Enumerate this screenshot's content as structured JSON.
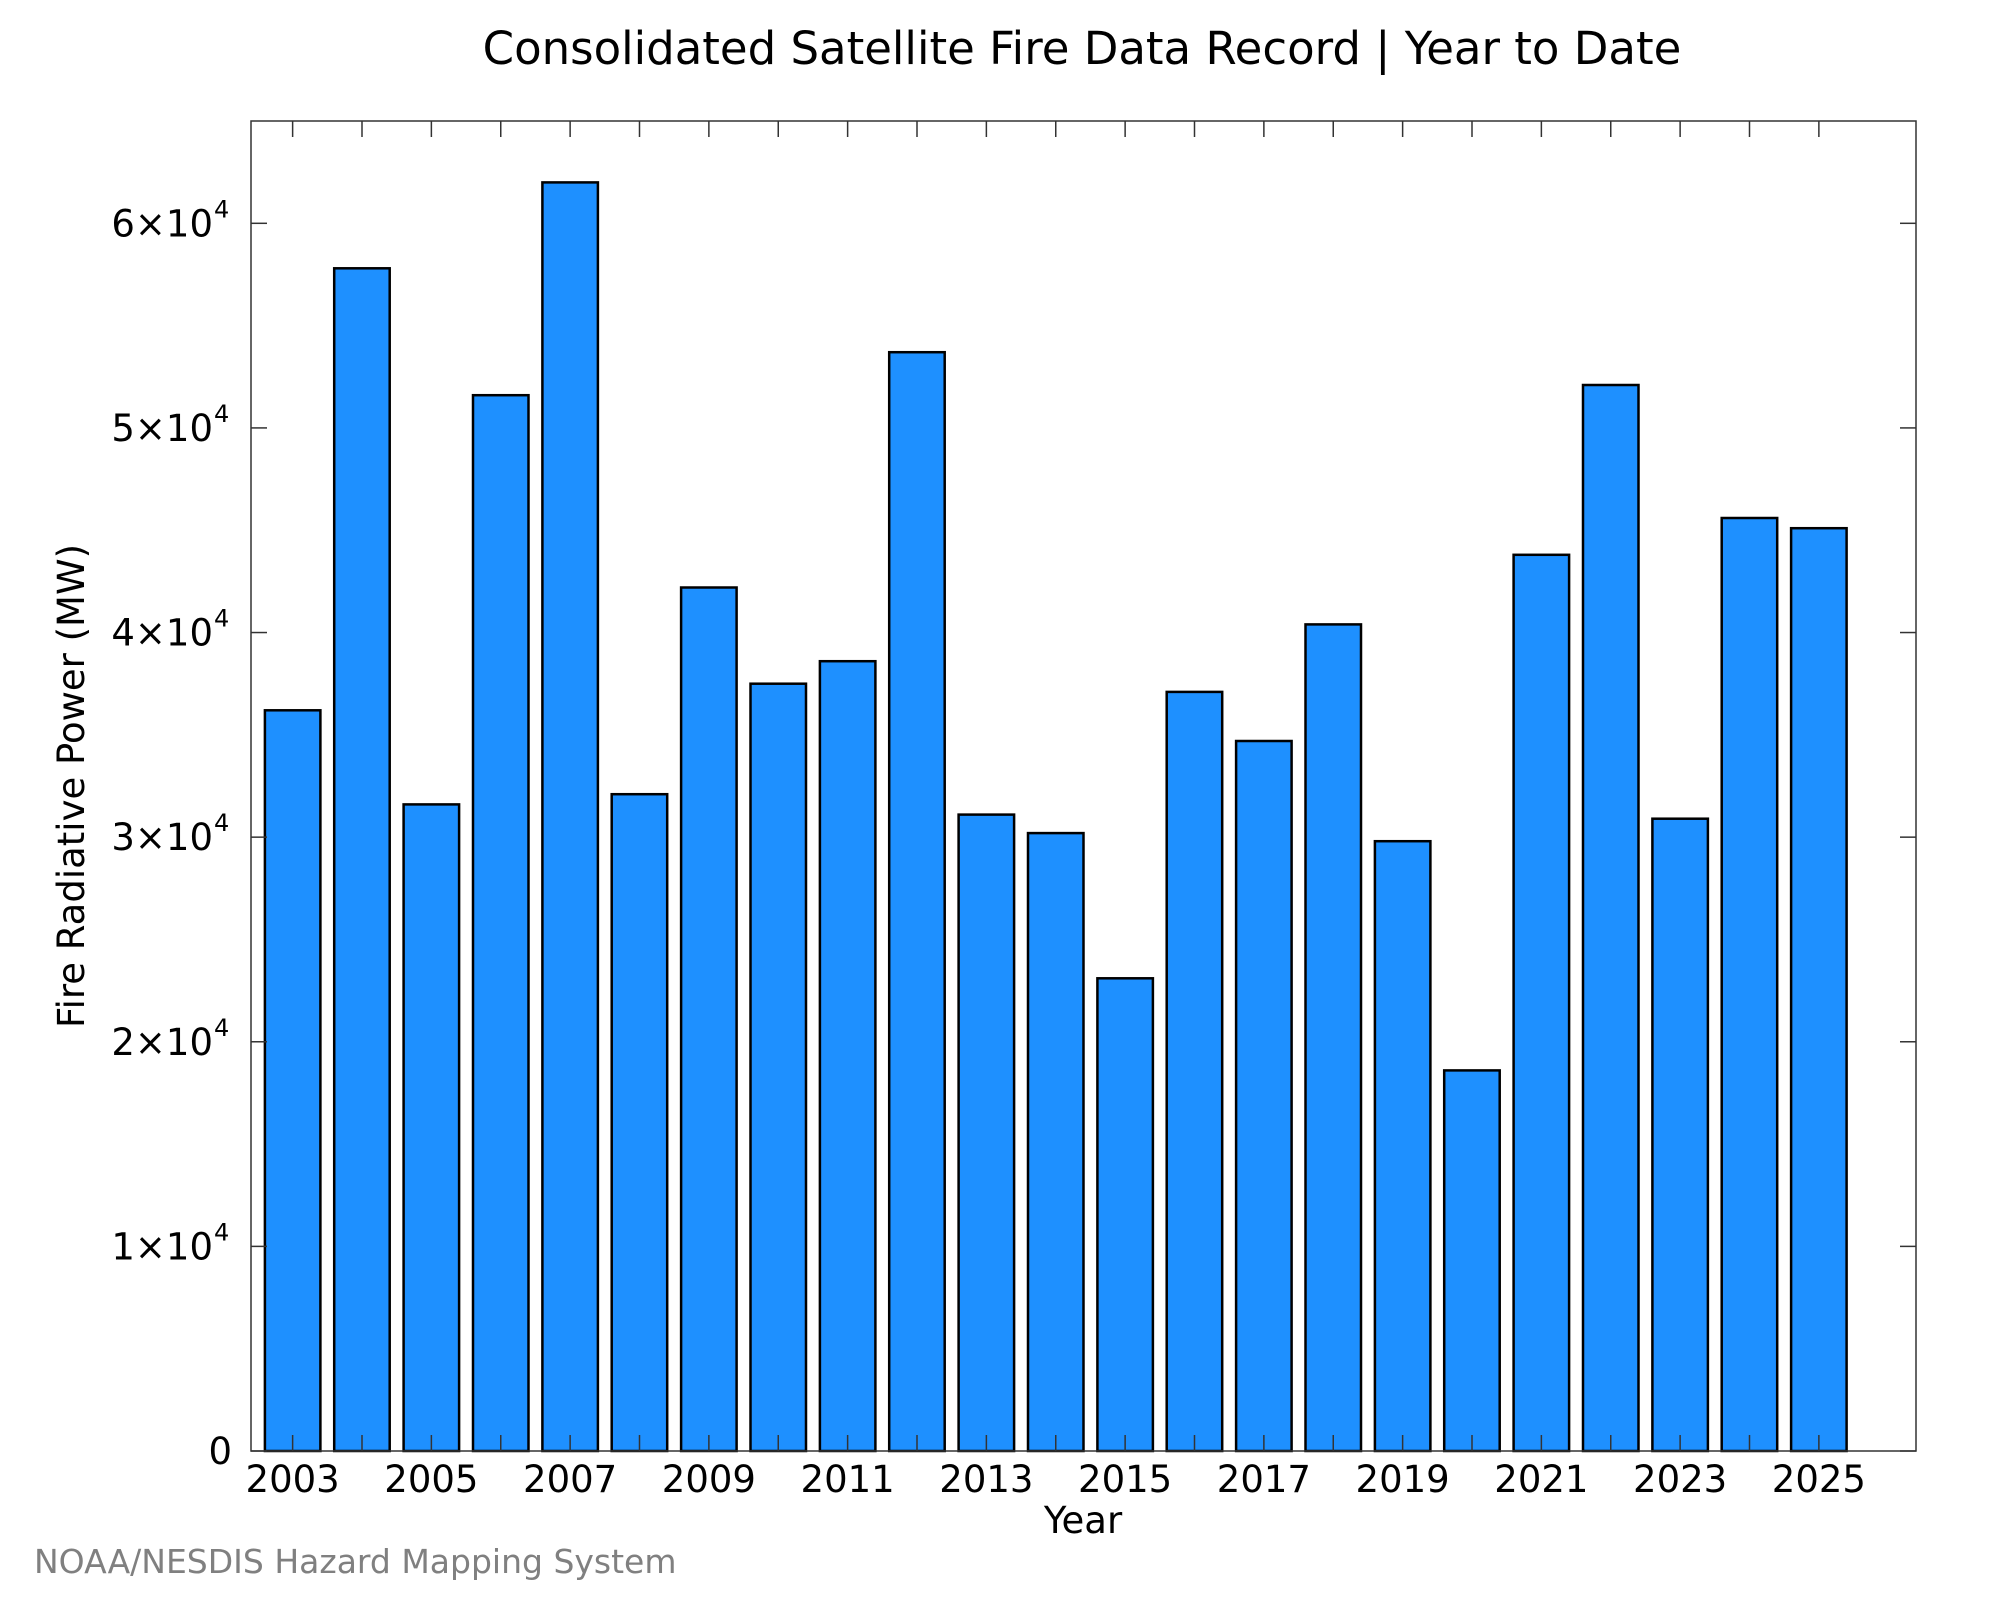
{
  "credit": "NOAA/NESDIS Hazard Mapping System",
  "chart_data": {
    "type": "bar",
    "title": "Consolidated Satellite Fire Data Record | Year to Date",
    "xlabel": "Year",
    "ylabel": "Fire Radiative Power (MW)",
    "categories": [
      "2003",
      "2004",
      "2005",
      "2006",
      "2007",
      "2008",
      "2009",
      "2010",
      "2011",
      "2012",
      "2013",
      "2014",
      "2015",
      "2016",
      "2017",
      "2018",
      "2019",
      "2020",
      "2021",
      "2022",
      "2023",
      "2024",
      "2025"
    ],
    "values": [
      36200,
      57800,
      31600,
      51600,
      62000,
      32100,
      42200,
      37500,
      38600,
      53700,
      31100,
      30200,
      23100,
      37100,
      34700,
      40400,
      29800,
      18600,
      43800,
      52100,
      30900,
      45600,
      45100
    ],
    "x_tick_labels": [
      "2003",
      "2005",
      "2007",
      "2009",
      "2011",
      "2013",
      "2015",
      "2017",
      "2019",
      "2021",
      "2023",
      "2025"
    ],
    "y_ticks": [
      {
        "value": 0,
        "mantissa": "0",
        "exponent": ""
      },
      {
        "value": 10000,
        "mantissa": "1×10",
        "exponent": "4"
      },
      {
        "value": 20000,
        "mantissa": "2×10",
        "exponent": "4"
      },
      {
        "value": 30000,
        "mantissa": "3×10",
        "exponent": "4"
      },
      {
        "value": 40000,
        "mantissa": "4×10",
        "exponent": "4"
      },
      {
        "value": 50000,
        "mantissa": "5×10",
        "exponent": "4"
      },
      {
        "value": 60000,
        "mantissa": "6×10",
        "exponent": "4"
      }
    ],
    "ylim": [
      0,
      65000
    ],
    "xlim": [
      2002.4,
      2026.4
    ],
    "grid": false,
    "legend": "none",
    "bar_color": "#1e90ff",
    "edge_color": "#000000"
  }
}
